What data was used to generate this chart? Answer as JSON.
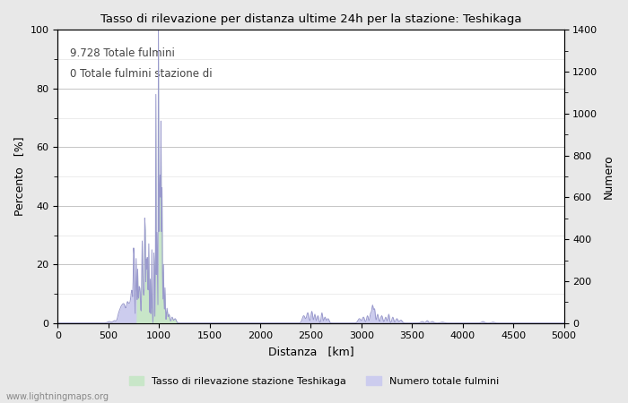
{
  "title": "Tasso di rilevazione per distanza ultime 24h per la stazione: Teshikaga",
  "xlabel": "Distanza   [km]",
  "ylabel_left": "Percento   [%]",
  "ylabel_right": "Numero",
  "annotation_line1": "9.728 Totale fulmini",
  "annotation_line2": "0 Totale fulmini stazione di",
  "xlim": [
    0,
    5000
  ],
  "ylim_left": [
    0,
    100
  ],
  "ylim_right": [
    0,
    1400
  ],
  "xticks": [
    0,
    500,
    1000,
    1500,
    2000,
    2500,
    3000,
    3500,
    4000,
    4500,
    5000
  ],
  "yticks_left": [
    0,
    20,
    40,
    60,
    80,
    100
  ],
  "yticks_right": [
    0,
    200,
    400,
    600,
    800,
    1000,
    1200,
    1400
  ],
  "legend_label1": "Tasso di rilevazione stazione Teshikaga",
  "legend_label2": "Numero totale fulmini",
  "watermark": "www.lightningmaps.org",
  "line_color": "#9999cc",
  "fill_color": "#ccccee",
  "fill_green_color": "#c8e6c8",
  "bg_color": "#e8e8e8",
  "plot_bg_color": "#ffffff",
  "grid_color": "#bbbbbb"
}
